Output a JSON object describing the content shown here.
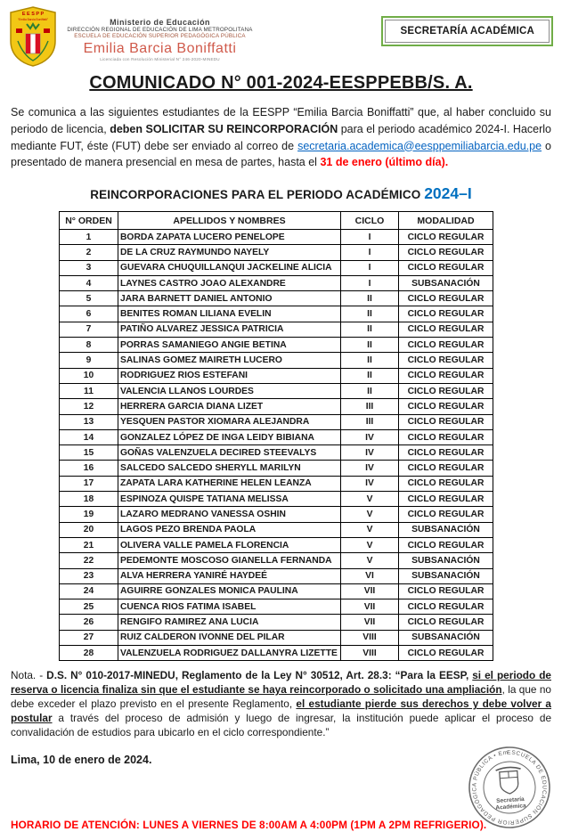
{
  "header": {
    "ministry_line1": "Ministerio de Educación",
    "ministry_line2": "DIRECCIÓN REGIONAL DE EDUCACIÓN DE LIMA METROPOLITANA",
    "ministry_line3": "ESCUELA DE EDUCACIÓN SUPERIOR PEDAGÓGICA PÚBLICA",
    "school_name": "Emilia Barcia Boniffatti",
    "license_line": "Licenciada con Resolución Ministerial N° 246-2020-MINEDU",
    "badge_label": "SECRETARÍA ACADÉMICA",
    "badge_border_color": "#70AD47",
    "logo": {
      "acronym": "E E S P P",
      "motto": "“Emilia Barcia Boniffatti”"
    }
  },
  "title": "COMUNICADO N° 001-2024-EESPPEBB/S. A.",
  "intro": {
    "part1": "Se comunica a las siguientes estudiantes de la EESPP “Emilia Barcia Boniffatti” que, al haber concluido su periodo de licencia, ",
    "bold1": "deben SOLICITAR SU REINCORPORACIÓN",
    "part2": " para el periodo académico 2024-I. Hacerlo mediante FUT, éste (FUT) debe ser enviado al correo de ",
    "email": "secretaria.academica@eesppemiliabarcia.edu.pe",
    "part3": " o presentado de manera presencial en mesa de partes, hasta el ",
    "deadline": "31 de enero (último día).",
    "link_color": "#0563C1",
    "deadline_color": "#FF0000"
  },
  "table": {
    "title_text": "REINCORPORACIONES PARA EL PERIODO ACADÉMICO ",
    "title_period": "2024–I",
    "period_color": "#0070C0",
    "headers": [
      "N° ORDEN",
      "APELLIDOS Y NOMBRES",
      "CICLO",
      "MODALIDAD"
    ],
    "rows": [
      [
        "1",
        "BORDA ZAPATA LUCERO PENELOPE",
        "I",
        "CICLO REGULAR"
      ],
      [
        "2",
        "DE LA CRUZ RAYMUNDO NAYELY",
        "I",
        "CICLO REGULAR"
      ],
      [
        "3",
        "GUEVARA CHUQUILLANQUI JACKELINE ALICIA",
        "I",
        "CICLO REGULAR"
      ],
      [
        "4",
        "LAYNES CASTRO JOAO ALEXANDRE",
        "I",
        "SUBSANACIÓN"
      ],
      [
        "5",
        "JARA BARNETT DANIEL ANTONIO",
        "II",
        "CICLO REGULAR"
      ],
      [
        "6",
        "BENITES ROMAN LILIANA EVELIN",
        "II",
        "CICLO REGULAR"
      ],
      [
        "7",
        "PATIÑO ALVAREZ JESSICA PATRICIA",
        "II",
        "CICLO REGULAR"
      ],
      [
        "8",
        "PORRAS SAMANIEGO ANGIE BETINA",
        "II",
        "CICLO REGULAR"
      ],
      [
        "9",
        "SALINAS GOMEZ MAIRETH LUCERO",
        "II",
        "CICLO REGULAR"
      ],
      [
        "10",
        "RODRIGUEZ RIOS ESTEFANI",
        "II",
        "CICLO REGULAR"
      ],
      [
        "11",
        "VALENCIA LLANOS LOURDES",
        "II",
        "CICLO REGULAR"
      ],
      [
        "12",
        "HERRERA GARCIA DIANA LIZET",
        "III",
        "CICLO REGULAR"
      ],
      [
        "13",
        "YESQUEN PASTOR XIOMARA ALEJANDRA",
        "III",
        "CICLO REGULAR"
      ],
      [
        "14",
        "GONZALEZ LÓPEZ DE INGA LEIDY BIBIANA",
        "IV",
        "CICLO REGULAR"
      ],
      [
        "15",
        "GOÑAS VALENZUELA DECIRED STEEVALYS",
        "IV",
        "CICLO REGULAR"
      ],
      [
        "16",
        "SALCEDO SALCEDO SHERYLL MARILYN",
        "IV",
        "CICLO REGULAR"
      ],
      [
        "17",
        "ZAPATA LARA KATHERINE HELEN LEANZA",
        "IV",
        "CICLO REGULAR"
      ],
      [
        "18",
        "ESPINOZA QUISPE TATIANA MELISSA",
        "V",
        "CICLO REGULAR"
      ],
      [
        "19",
        "LAZARO MEDRANO VANESSA OSHIN",
        "V",
        "CICLO REGULAR"
      ],
      [
        "20",
        "LAGOS PEZO BRENDA PAOLA",
        "V",
        "SUBSANACIÓN"
      ],
      [
        "21",
        "OLIVERA VALLE PAMELA FLORENCIA",
        "V",
        "CICLO REGULAR"
      ],
      [
        "22",
        "PEDEMONTE MOSCOSO GIANELLA FERNANDA",
        "V",
        "SUBSANACIÓN"
      ],
      [
        "23",
        "ALVA HERRERA YANIRÉ HAYDEÉ",
        "VI",
        "SUBSANACIÓN"
      ],
      [
        "24",
        "AGUIRRE GONZALES MONICA PAULINA",
        "VII",
        "CICLO REGULAR"
      ],
      [
        "25",
        "CUENCA RIOS FATIMA ISABEL",
        "VII",
        "CICLO REGULAR"
      ],
      [
        "26",
        "RENGIFO RAMIREZ ANA LUCIA",
        "VII",
        "CICLO REGULAR"
      ],
      [
        "27",
        "RUIZ CALDERON IVONNE DEL PILAR",
        "VIII",
        "SUBSANACIÓN"
      ],
      [
        "28",
        "VALENZUELA RODRIGUEZ DALLANYRA LIZETTE",
        "VIII",
        "CICLO REGULAR"
      ]
    ]
  },
  "nota": {
    "n1": "Nota. - ",
    "n2": "D.S. N° 010-2017-MINEDU, Reglamento de la Ley N° 30512, Art. 28.3: “Para la EESP, ",
    "n3": "si el periodo de reserva o licencia finaliza sin que el estudiante se haya reincorporado o solicitado una ampliación",
    "n4": ", la que no debe exceder el plazo previsto en el presente Reglamento, ",
    "n5": "el estudiante pierde sus derechos y debe volver a postular",
    "n6": " a través del proceso de admisión y luego de ingresar, la institución puede aplicar el proceso de convalidación de estudios para ubicarlo en el ciclo correspondiente.”"
  },
  "date_line": "Lima, 10 de enero de 2024.",
  "seal": {
    "ring_text": "ESCUELA DE EDUCACIÓN SUPERIOR PEDAGÓGICA PÚBLICA • Emilia Barcia Boniffatti •",
    "center_line1": "Secretaría",
    "center_line2": "Académica"
  },
  "schedule": "HORARIO DE ATENCIÓN: LUNES A VIERNES DE 8:00AM A 4:00PM (1PM A 2PM REFRIGERIO)."
}
